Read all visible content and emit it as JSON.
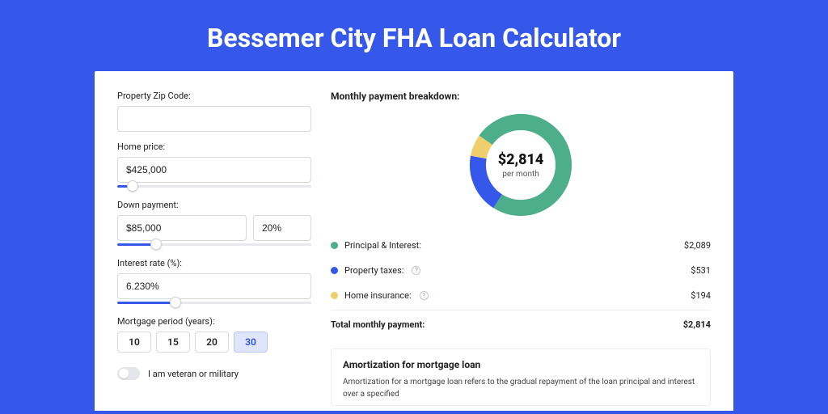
{
  "title": "Bessemer City FHA Loan Calculator",
  "colors": {
    "page_bg": "#3558eb",
    "card_bg": "#ffffff",
    "input_border": "#d7d8dc",
    "slider_track": "#e7e9ef",
    "slider_fill": "#3558eb",
    "period_active_bg": "#dfe6fb",
    "text": "#222222"
  },
  "form": {
    "zip": {
      "label": "Property Zip Code:",
      "value": ""
    },
    "home_price": {
      "label": "Home price:",
      "value": "$425,000",
      "slider_pct": 8
    },
    "down_payment": {
      "label": "Down payment:",
      "value": "$85,000",
      "pct": "20%",
      "slider_pct": 20
    },
    "interest_rate": {
      "label": "Interest rate (%):",
      "value": "6.230%",
      "slider_pct": 30
    },
    "mortgage_period": {
      "label": "Mortgage period (years):",
      "options": [
        "10",
        "15",
        "20",
        "30"
      ],
      "selected": "30"
    },
    "veteran": {
      "label": "I am veteran or military",
      "checked": false
    }
  },
  "breakdown": {
    "title": "Monthly payment breakdown:",
    "center_amount": "$2,814",
    "center_sub": "per month",
    "donut": {
      "segments": [
        {
          "name": "principal_interest",
          "value": 2089,
          "color": "#4cae8a",
          "pct": 74.2
        },
        {
          "name": "property_taxes",
          "value": 531,
          "color": "#3558eb",
          "pct": 18.9
        },
        {
          "name": "home_insurance",
          "value": 194,
          "color": "#efcf6b",
          "pct": 6.9
        }
      ],
      "thickness": 20,
      "bg": "#ffffff"
    },
    "rows": [
      {
        "color": "#4cae8a",
        "label": "Principal & Interest:",
        "value": "$2,089",
        "info": false
      },
      {
        "color": "#3558eb",
        "label": "Property taxes:",
        "value": "$531",
        "info": true
      },
      {
        "color": "#efcf6b",
        "label": "Home insurance:",
        "value": "$194",
        "info": true
      }
    ],
    "total": {
      "label": "Total monthly payment:",
      "value": "$2,814"
    }
  },
  "amortization": {
    "title": "Amortization for mortgage loan",
    "text": "Amortization for a mortgage loan refers to the gradual repayment of the loan principal and interest over a specified"
  }
}
